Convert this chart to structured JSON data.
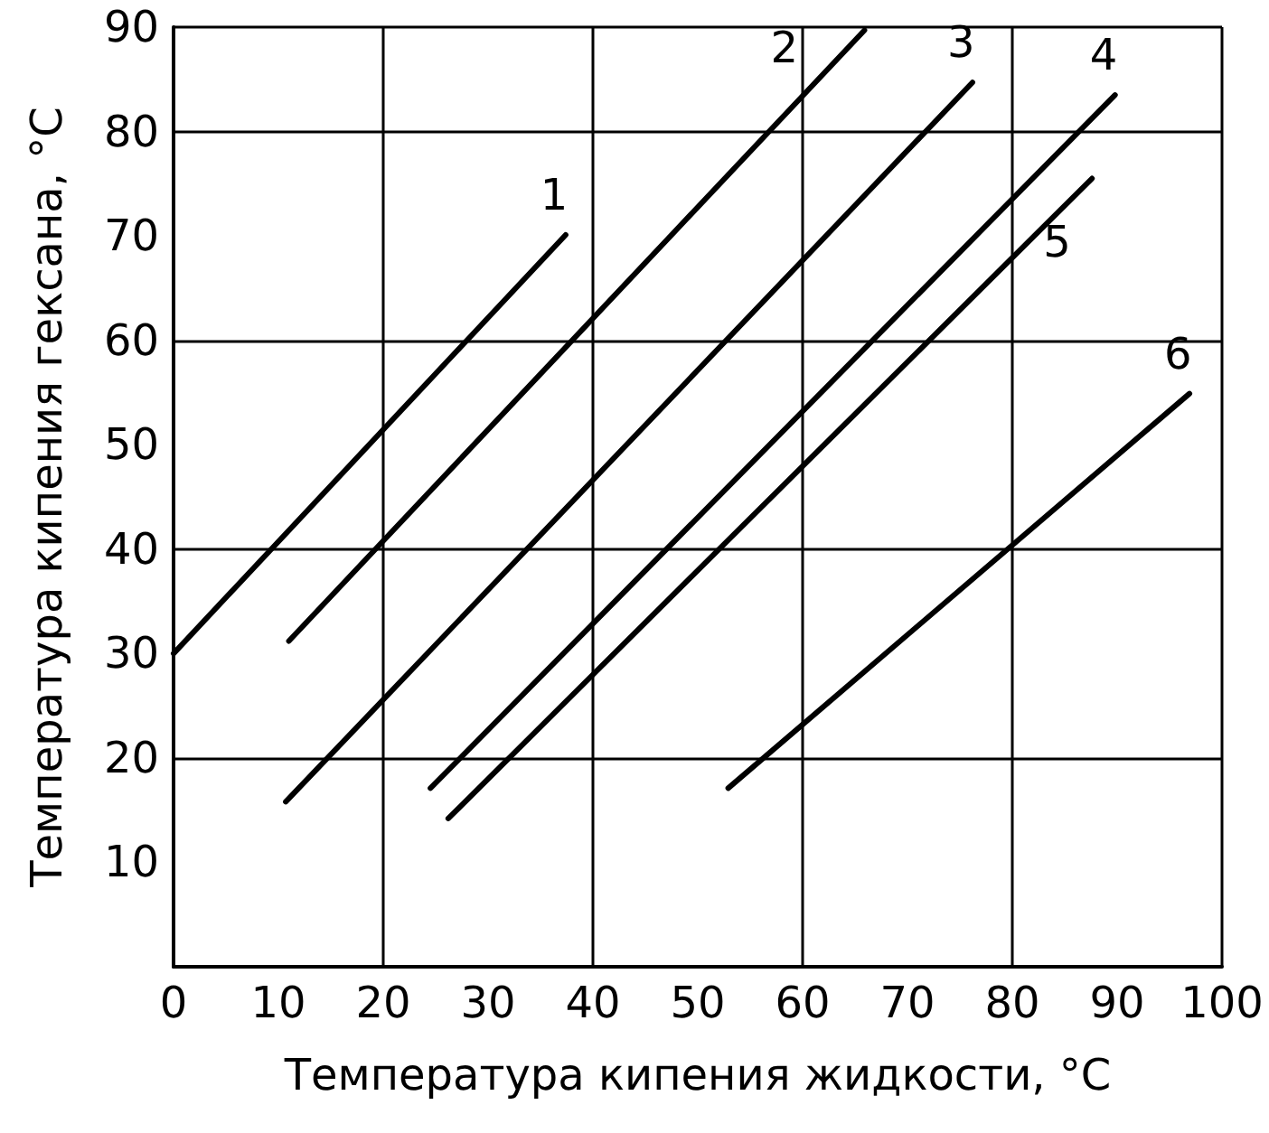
{
  "chart_data": {
    "type": "line",
    "xlabel": "Температура кипения жидкости, °C",
    "ylabel": "Температура кипения гексана, °C",
    "xlim": [
      0,
      100
    ],
    "xticks": [
      0,
      10,
      20,
      30,
      40,
      50,
      60,
      70,
      80,
      90,
      100
    ],
    "ylim": [
      0,
      90
    ],
    "yticks": [
      10,
      20,
      30,
      40,
      50,
      60,
      70,
      80,
      90
    ],
    "grid": true,
    "legend": false,
    "marker": "none",
    "line_style": "solid",
    "series": [
      {
        "name": "1",
        "color": "#000000",
        "x": [
          0,
          37.4
        ],
        "values": [
          30,
          70.1
        ]
      },
      {
        "name": "2",
        "color": "#000000",
        "x": [
          11,
          65.9
        ],
        "values": [
          31.2,
          89.7
        ]
      },
      {
        "name": "3",
        "color": "#000000",
        "x": [
          10.7,
          76.2
        ],
        "values": [
          15.8,
          84.7
        ]
      },
      {
        "name": "4",
        "color": "#000000",
        "x": [
          24.5,
          89.8
        ],
        "values": [
          17.1,
          83.5
        ]
      },
      {
        "name": "5",
        "color": "#000000",
        "x": [
          26.2,
          87.6
        ],
        "values": [
          14.2,
          75.5
        ]
      },
      {
        "name": "6",
        "color": "#000000",
        "x": [
          52.9,
          96.9
        ],
        "values": [
          17.1,
          54.9
        ]
      }
    ]
  }
}
